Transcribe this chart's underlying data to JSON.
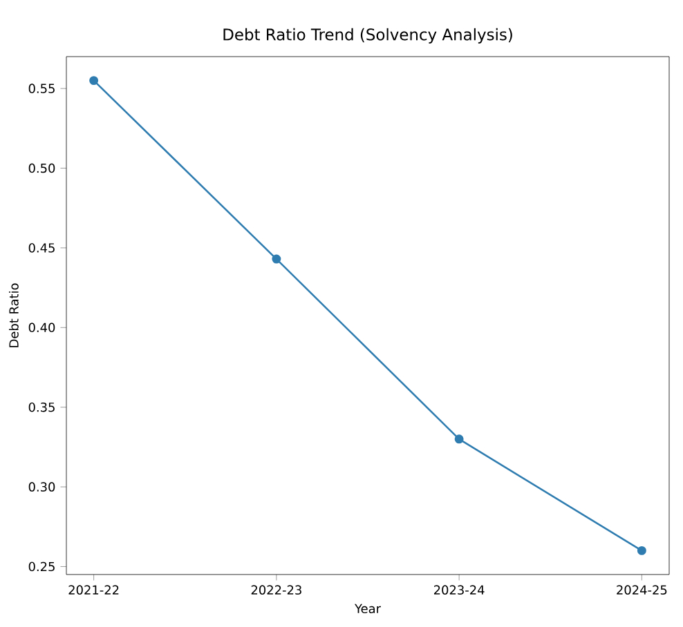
{
  "chart_data": {
    "type": "line",
    "title": "Debt Ratio Trend (Solvency Analysis)",
    "xlabel": "Year",
    "ylabel": "Debt Ratio",
    "categories": [
      "2021-22",
      "2022-23",
      "2023-24",
      "2024-25"
    ],
    "series": [
      {
        "color": "#2f7db0",
        "values": [
          0.555,
          0.443,
          0.33,
          0.26
        ]
      }
    ],
    "ylim": [
      0.245,
      0.57
    ],
    "yticks": [
      0.25,
      {
        "value": 0.3,
        "label": "0.30"
      },
      0.35,
      {
        "value": 0.4,
        "label": "0.40"
      },
      0.45,
      {
        "value": 0.5,
        "label": "0.50"
      },
      0.55
    ],
    "marker": "circle",
    "line_style": "solid"
  }
}
